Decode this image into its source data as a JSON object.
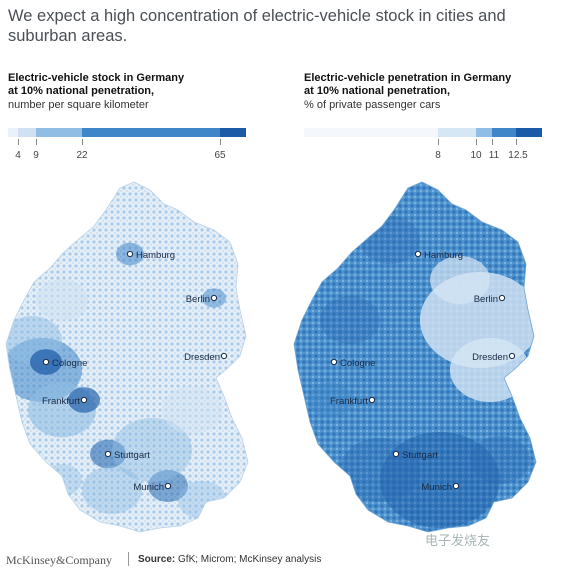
{
  "headline": "We expect a high concentration of electric-vehicle stock in cities and suburban areas.",
  "panels": [
    {
      "title_line1": "Electric-vehicle stock in Germany",
      "title_line2": "at 10% national penetration,",
      "subtitle": "number per square kilometer",
      "legend_ticks": [
        "4",
        "9",
        "22",
        "65"
      ],
      "legend_colors": [
        "#e9f1f9",
        "#cfe1f2",
        "#8fbde3",
        "#3f86c8",
        "#1b5aa6"
      ],
      "cities": [
        "Hamburg",
        "Berlin",
        "Dresden",
        "Cologne",
        "Frankfurt",
        "Stuttgart",
        "Munich"
      ]
    },
    {
      "title_line1": "Electric-vehicle penetration in Germany",
      "title_line2": "at 10% national penetration,",
      "subtitle": "% of private passenger cars",
      "legend_ticks": [
        "8",
        "10",
        "11",
        "12.5"
      ],
      "legend_colors": [
        "#e9f1f9",
        "#d5e6f4",
        "#8fbde3",
        "#3f86c8",
        "#1b5aa6"
      ],
      "cities": [
        "Hamburg",
        "Berlin",
        "Dresden",
        "Cologne",
        "Frankfurt",
        "Stuttgart",
        "Munich"
      ]
    }
  ],
  "footer": {
    "brand": "McKinsey&Company",
    "source_label": "Source:",
    "source_text": "GfK; Microm; McKinsey analysis"
  },
  "watermark": "电子发烧友"
}
